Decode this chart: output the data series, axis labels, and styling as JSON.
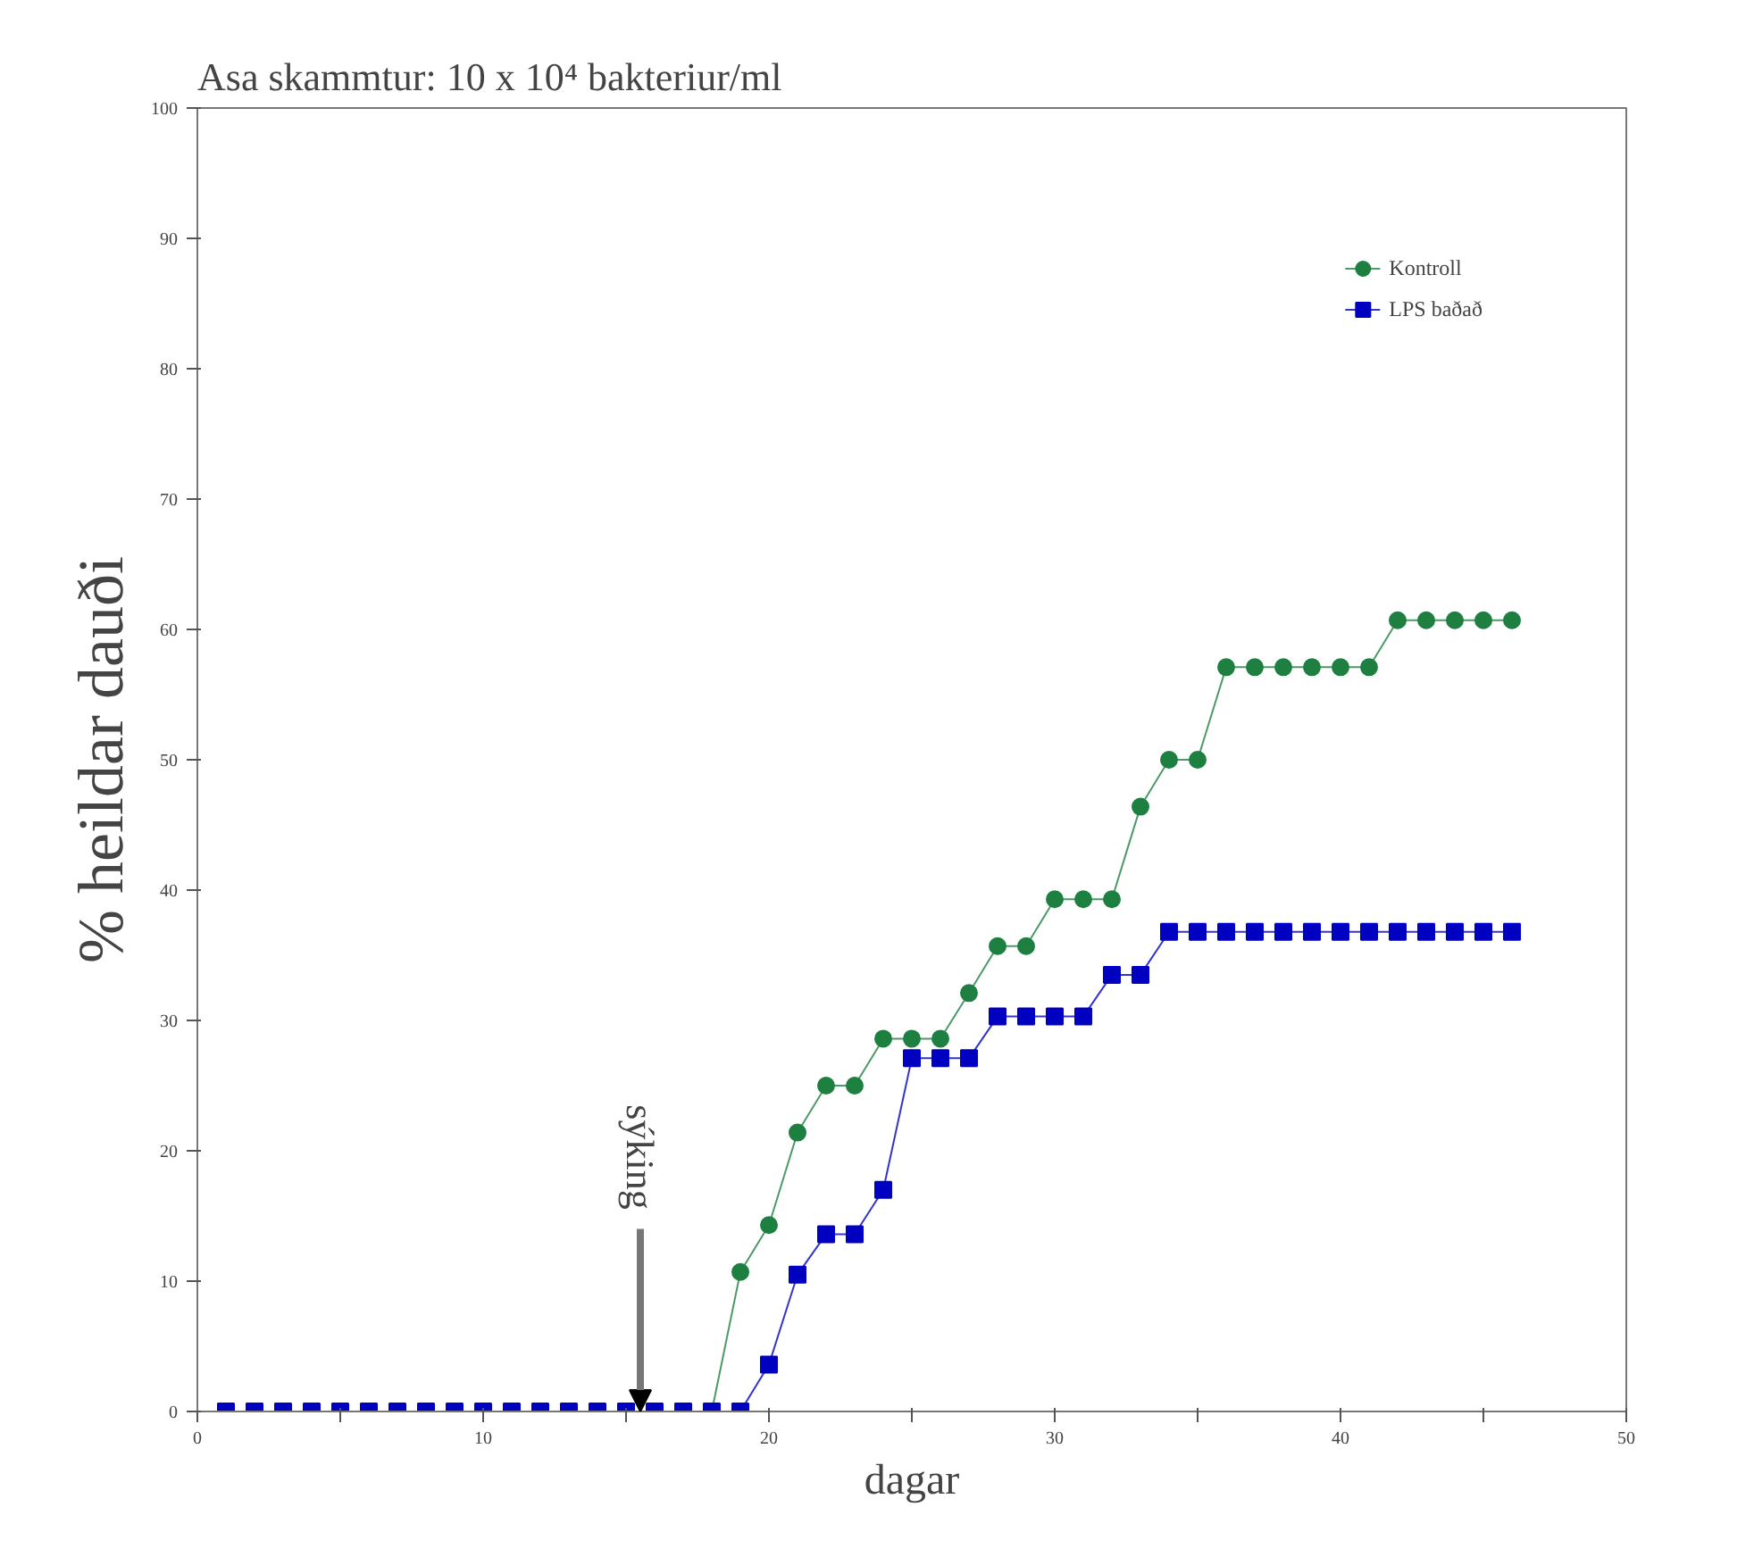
{
  "chart_data": {
    "type": "line",
    "title": "Asa skammtur: 10 x 10⁴ bakteriur/ml",
    "xlabel": "dagar",
    "ylabel": "% heildar dauði",
    "xlim": [
      0,
      50
    ],
    "xticks": [
      0,
      {
        "value": 5,
        "label": null
      },
      10,
      {
        "value": 15,
        "label": null
      },
      20,
      {
        "value": 25,
        "label": null
      },
      30,
      {
        "value": 35,
        "label": null
      },
      40,
      {
        "value": 45,
        "label": null
      },
      50
    ],
    "ylim": [
      0,
      100
    ],
    "yticks": [
      0,
      10,
      20,
      30,
      40,
      50,
      60,
      70,
      80,
      90,
      100
    ],
    "grid": false,
    "legend": "top right",
    "annotations": [
      {
        "text": "sýking",
        "x": 15.5,
        "y": 0
      }
    ],
    "series": [
      {
        "name": "Kontroll",
        "color": "#1e8040",
        "marker": "circle",
        "x": [
          17,
          18,
          19,
          20,
          21,
          22,
          23,
          24,
          25,
          26,
          27,
          28,
          29,
          30,
          31,
          32,
          33,
          34,
          35,
          36,
          37,
          38,
          39,
          40,
          41,
          42,
          43,
          44,
          45,
          46
        ],
        "values": [
          0,
          0,
          10.7,
          14.3,
          21.4,
          25,
          25,
          28.6,
          28.6,
          28.6,
          32.1,
          35.7,
          35.7,
          39.3,
          39.3,
          39.3,
          46.4,
          50,
          50,
          57.1,
          57.1,
          57.1,
          57.1,
          57.1,
          57.1,
          60.7,
          60.7,
          60.7,
          60.7,
          60.7
        ]
      },
      {
        "name": "LPS baðað",
        "color": "#0000c0",
        "marker": "square",
        "x": [
          1,
          2,
          3,
          4,
          5,
          6,
          7,
          8,
          9,
          10,
          11,
          12,
          13,
          14,
          15,
          16,
          17,
          18,
          19,
          20,
          21,
          22,
          23,
          24,
          25,
          26,
          27,
          28,
          29,
          30,
          31,
          32,
          33,
          34,
          35,
          36,
          37,
          38,
          39,
          40,
          41,
          42,
          43,
          44,
          45,
          46
        ],
        "values": [
          0,
          0,
          0,
          0,
          0,
          0,
          0,
          0,
          0,
          0,
          0,
          0,
          0,
          0,
          0,
          0,
          0,
          0,
          0,
          3.6,
          10.5,
          13.6,
          13.6,
          17,
          27.1,
          27.1,
          27.1,
          30.3,
          30.3,
          30.3,
          30.3,
          33.5,
          33.5,
          36.8,
          36.8,
          36.8,
          36.8,
          36.8,
          36.8,
          36.8,
          36.8,
          36.8,
          36.8,
          36.8,
          36.8,
          36.8
        ]
      }
    ]
  }
}
